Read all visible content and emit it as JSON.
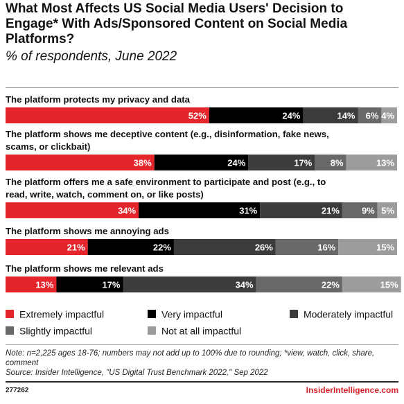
{
  "chart_data": {
    "type": "bar",
    "orientation": "horizontal",
    "stacked": true,
    "title": "What Most Affects US Social Media Users' Decision to Engage* With Ads/Sponsored Content on Social Media Platforms?",
    "subtitle": "% of respondents, June 2022",
    "categories": [
      "The platform protects my privacy and data",
      "The platform shows me deceptive content (e.g., disinformation, fake news, scams, or clickbait)",
      "The platform offers me a safe environment to participate and post (e.g., to read, write, watch, comment on, or like posts)",
      "The platform shows me annoying ads",
      "The platform shows me relevant ads"
    ],
    "category_lines": [
      [
        "The platform protects my privacy and data"
      ],
      [
        "The platform shows me deceptive content (e.g., disinformation, fake news,",
        "scams, or clickbait)"
      ],
      [
        "The platform offers me a safe environment to participate and post (e.g., to",
        "read, write, watch, comment on, or like posts)"
      ],
      [
        "The platform shows me annoying ads"
      ],
      [
        "The platform shows me relevant ads"
      ]
    ],
    "series": [
      {
        "name": "Extremely impactful",
        "color": "#e4252c",
        "values": [
          52,
          38,
          34,
          21,
          13
        ]
      },
      {
        "name": "Very impactful",
        "color": "#000000",
        "values": [
          24,
          24,
          31,
          22,
          17
        ]
      },
      {
        "name": "Moderately impactful",
        "color": "#3c3c3c",
        "values": [
          14,
          17,
          21,
          26,
          34
        ]
      },
      {
        "name": "Slightly impactful",
        "color": "#686868",
        "values": [
          6,
          8,
          9,
          16,
          22
        ]
      },
      {
        "name": "Not at all impactful",
        "color": "#9c9c9c",
        "values": [
          4,
          13,
          5,
          15,
          15
        ]
      }
    ],
    "value_suffix": "%",
    "xlim": [
      0,
      100
    ],
    "legend_position": "bottom"
  },
  "note": "Note: n=2,225 ages 18-76; numbers may not add up to 100% due to rounding; *view, watch, click, share, comment",
  "source": "Source: Insider Intelligence, \"US Digital Trust Benchmark 2022,\" Sep 2022",
  "chart_id": "277262",
  "brand": "InsiderIntelligence.com"
}
